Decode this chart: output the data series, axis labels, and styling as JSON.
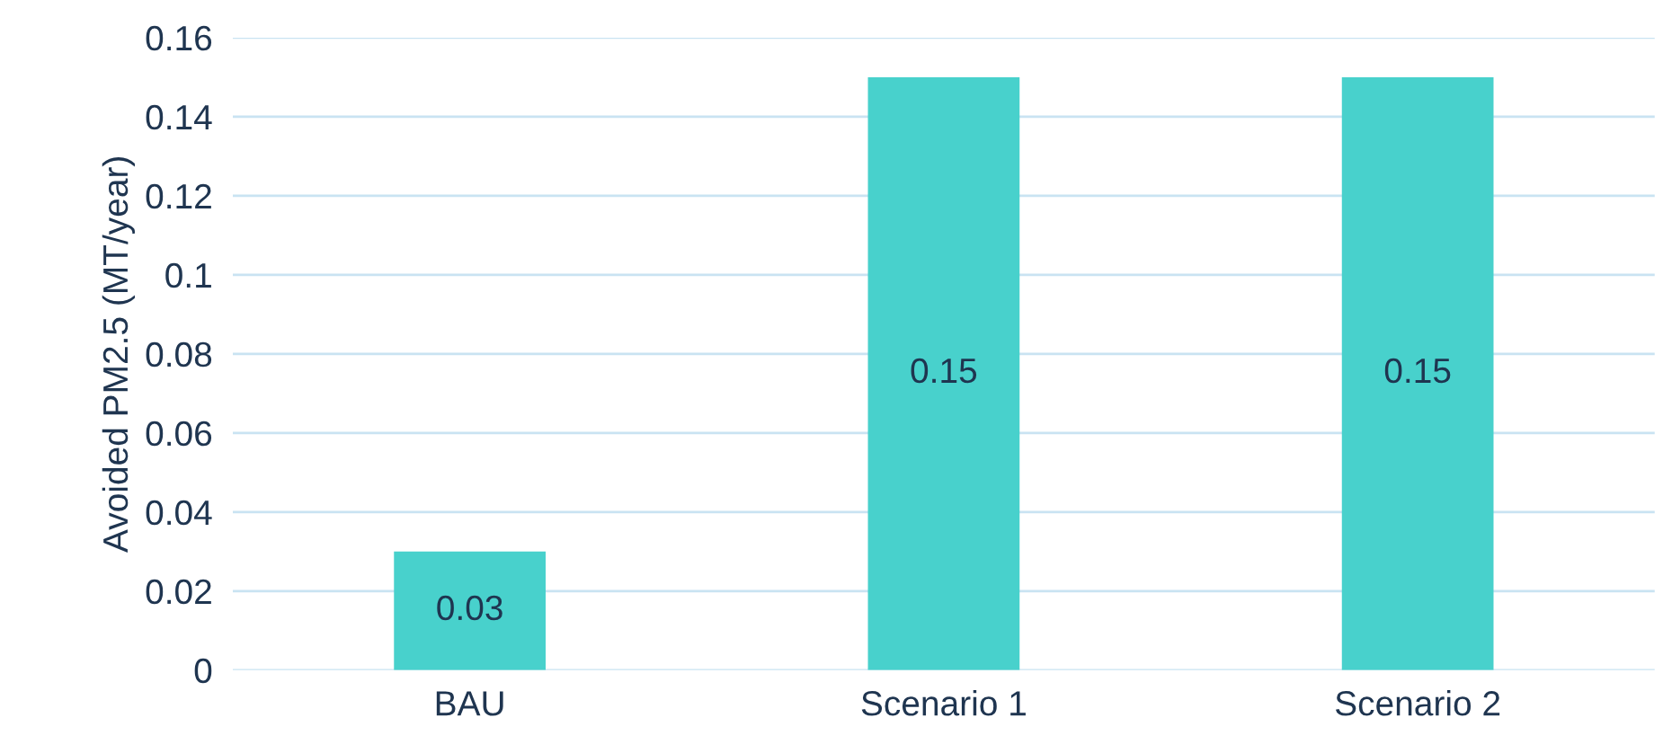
{
  "chart_data": {
    "type": "bar",
    "ylabel": "Avoided PM2.5 (MT/year)",
    "categories": [
      "BAU",
      "Scenario 1",
      "Scenario 2"
    ],
    "values": [
      0.03,
      0.15,
      0.15
    ],
    "color": "#48d1cc",
    "ylim": [
      0,
      0.16
    ],
    "yticks": [
      0,
      0.02,
      0.04,
      0.06,
      0.08,
      0.1,
      0.12,
      0.14,
      0.16
    ],
    "grid": "y",
    "data_labels": true,
    "legend": false
  }
}
